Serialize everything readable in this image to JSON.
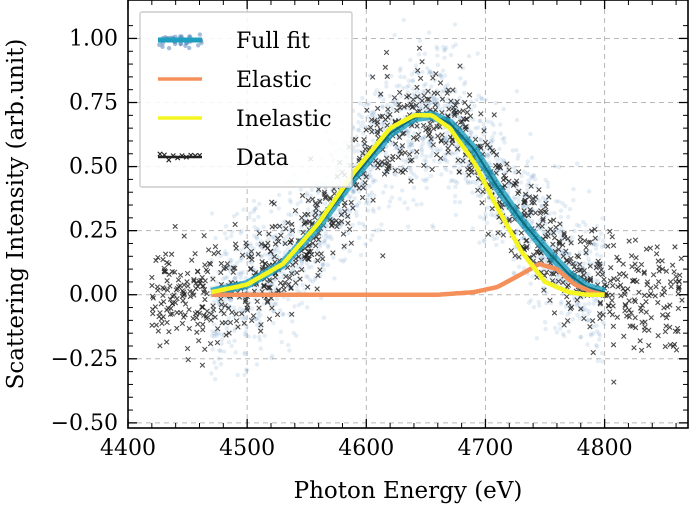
{
  "chart_data": {
    "type": "line",
    "xlabel": "Photon Energy (eV)",
    "ylabel": "Scattering Intensity (arb.unit)",
    "xlim": [
      4400,
      4870
    ],
    "ylim": [
      -0.52,
      1.15
    ],
    "xticks": [
      4400,
      4500,
      4600,
      4700,
      4800
    ],
    "xtick_labels": [
      "4400",
      "4500",
      "4600",
      "4700",
      "4800"
    ],
    "yticks": [
      -0.5,
      -0.25,
      0.0,
      0.25,
      0.5,
      0.75,
      1.0
    ],
    "ytick_labels": [
      "−0.50",
      "−0.25",
      "0.00",
      "0.25",
      "0.50",
      "0.75",
      "1.00"
    ],
    "grid": true,
    "legend_position": "top-left",
    "series": [
      {
        "name": "Full fit",
        "kind": "band",
        "color": "#1f9fbf",
        "cloud_color": "#4a7db5",
        "x": [
          4470,
          4500,
          4530,
          4560,
          4590,
          4620,
          4640,
          4655,
          4670,
          4690,
          4710,
          4730,
          4750,
          4770,
          4785,
          4800
        ],
        "y": [
          0.01,
          0.04,
          0.12,
          0.27,
          0.46,
          0.63,
          0.69,
          0.7,
          0.67,
          0.57,
          0.42,
          0.29,
          0.18,
          0.08,
          0.03,
          0.01
        ]
      },
      {
        "name": "Elastic",
        "kind": "line",
        "color": "#f5905a",
        "x": [
          4470,
          4550,
          4620,
          4660,
          4690,
          4710,
          4730,
          4745,
          4760,
          4775,
          4790,
          4800
        ],
        "y": [
          0.0,
          0.0,
          0.0,
          0.0,
          0.01,
          0.03,
          0.08,
          0.12,
          0.1,
          0.04,
          0.01,
          0.0
        ]
      },
      {
        "name": "Inelastic",
        "kind": "line",
        "color": "#f5f520",
        "x": [
          4470,
          4500,
          4530,
          4560,
          4590,
          4620,
          4640,
          4655,
          4670,
          4690,
          4710,
          4730,
          4750,
          4770,
          4785,
          4800
        ],
        "y": [
          0.01,
          0.04,
          0.12,
          0.28,
          0.48,
          0.65,
          0.7,
          0.7,
          0.65,
          0.52,
          0.34,
          0.17,
          0.05,
          0.01,
          0.0,
          0.0
        ]
      },
      {
        "name": "Data",
        "kind": "scatter",
        "color": "#222222",
        "x_range": [
          4420,
          4865
        ],
        "noise_sd": 0.1
      }
    ]
  }
}
